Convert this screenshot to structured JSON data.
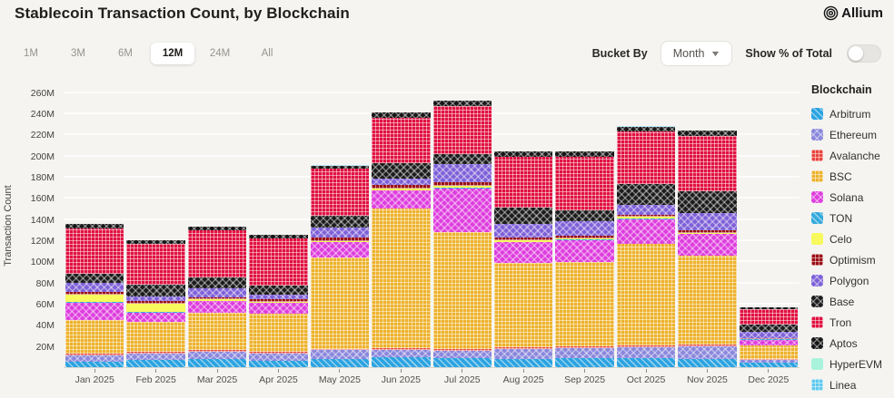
{
  "header": {
    "title": "Stablecoin Transaction Count, by Blockchain",
    "brand": "Allium"
  },
  "controls": {
    "ranges": [
      "1M",
      "3M",
      "6M",
      "12M",
      "24M",
      "All"
    ],
    "selected_range": "12M",
    "bucket_by_label": "Bucket By",
    "bucket_value": "Month",
    "toggle_label": "Show % of Total",
    "toggle_on": false
  },
  "chart_data": {
    "type": "bar",
    "stacked": true,
    "title": "Stablecoin Transaction Count, by Blockchain",
    "xlabel": "",
    "ylabel": "Transaction Count",
    "ylim": [
      0,
      266.6
    ],
    "ytick_step": 20,
    "ytick_suffix": "M",
    "grid": true,
    "legend_title": "Blockchain",
    "legend_position": "right",
    "units": "millions of transactions",
    "categories": [
      "Jan 2025",
      "Feb 2025",
      "Mar 2025",
      "Apr 2025",
      "May 2025",
      "Jun 2025",
      "Jul 2025",
      "Aug 2025",
      "Sep 2025",
      "Oct 2025",
      "Nov 2025",
      "Dec 2025"
    ],
    "series": [
      {
        "name": "Arbitrum",
        "color": "#2ba3e0",
        "pattern": "diag",
        "values": [
          5,
          7,
          8,
          6,
          8,
          9.5,
          8.5,
          8,
          8.5,
          8.5,
          8,
          4.5
        ]
      },
      {
        "name": "Ethereum",
        "color": "#8a87dc",
        "pattern": "cross",
        "values": [
          6,
          6,
          7,
          7,
          8,
          7,
          7,
          9.5,
          9.5,
          10,
          12,
          2.5
        ]
      },
      {
        "name": "Avalanche",
        "color": "#e8463f",
        "pattern": "grid",
        "values": [
          1.5,
          1.5,
          1.5,
          1.5,
          1.5,
          1.5,
          1.5,
          1.7,
          1.7,
          1.7,
          1.7,
          1
        ]
      },
      {
        "name": "BSC",
        "color": "#edb22c",
        "pattern": "grid",
        "values": [
          32,
          28.5,
          35,
          36,
          86.5,
          132,
          111,
          79,
          80,
          96,
          84,
          13
        ]
      },
      {
        "name": "Solana",
        "color": "#de3ede",
        "pattern": "cross",
        "values": [
          16.5,
          8.5,
          11,
          10,
          14,
          17,
          41,
          20,
          20.5,
          24,
          20,
          5
        ]
      },
      {
        "name": "TON",
        "color": "#35aadc",
        "pattern": "diag",
        "values": [
          0.5,
          0.5,
          0.5,
          0.5,
          0.5,
          0.5,
          0.5,
          0.5,
          0.5,
          0.5,
          0.5,
          0.3
        ]
      },
      {
        "name": "Celo",
        "color": "#f7f95c",
        "pattern": "solid",
        "values": [
          7.5,
          8.5,
          1,
          0.5,
          0.5,
          1.7,
          1.7,
          1.5,
          1.5,
          1.7,
          0.5,
          0.3
        ]
      },
      {
        "name": "Optimism",
        "color": "#9c1014",
        "pattern": "grid",
        "values": [
          2,
          2,
          2,
          2.5,
          3.5,
          3.5,
          3.5,
          2.5,
          2.5,
          2,
          2.5,
          0.5
        ]
      },
      {
        "name": "Polygon",
        "color": "#7e61d8",
        "pattern": "cross",
        "values": [
          8.5,
          4.5,
          8.5,
          5,
          10,
          6,
          17,
          13,
          13,
          9.5,
          17,
          6
        ]
      },
      {
        "name": "Base",
        "color": "#1c1c1c",
        "pattern": "cross",
        "values": [
          8.5,
          11,
          10.5,
          8,
          11,
          14.5,
          9.5,
          15.5,
          11,
          19,
          20.5,
          7
        ]
      },
      {
        "name": "Tron",
        "color": "#e01140",
        "pattern": "grid",
        "values": [
          43,
          38.5,
          44.5,
          44.5,
          44.5,
          43,
          46,
          48,
          50.5,
          50,
          52,
          14.5
        ]
      },
      {
        "name": "Aptos",
        "color": "#161616",
        "pattern": "cross",
        "values": [
          4.5,
          3.5,
          3.5,
          3.5,
          2.5,
          4.5,
          4.5,
          4.5,
          4.5,
          4.5,
          5,
          1.7
        ]
      },
      {
        "name": "HyperEVM",
        "color": "#a9f3dc",
        "pattern": "solid",
        "values": [
          0.2,
          0.2,
          0.2,
          0.2,
          0.2,
          0.2,
          0.2,
          0.2,
          0.2,
          0.2,
          0.2,
          0.1
        ]
      },
      {
        "name": "Linea",
        "color": "#5fc9ee",
        "pattern": "grid",
        "values": [
          0.2,
          0.2,
          0.2,
          0.2,
          0.2,
          0.2,
          0.2,
          0.2,
          0.2,
          0.2,
          0.2,
          0.1
        ]
      }
    ]
  }
}
